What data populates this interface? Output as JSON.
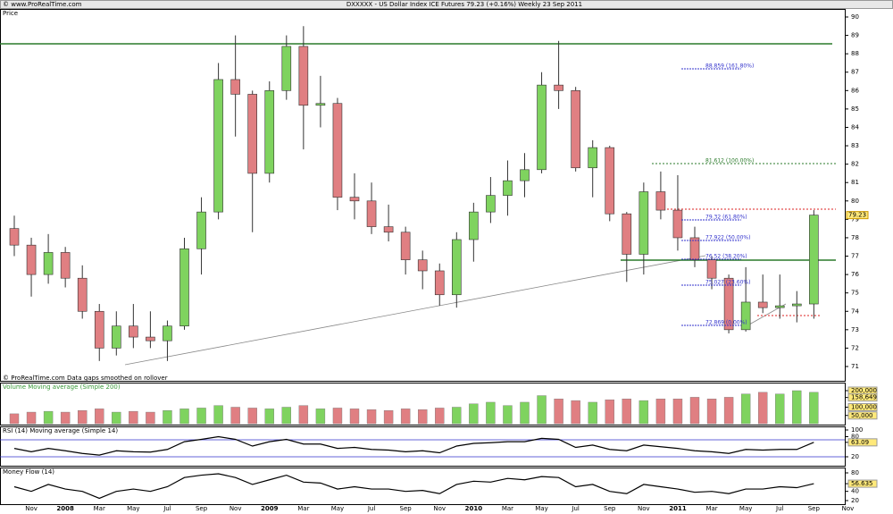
{
  "site": "© www.ProRealTime.com",
  "footnote": "© ProRealTime.com  Data gaps smoothed on rollover",
  "chart_data": {
    "type": "candlestick",
    "title": "DXXXXX - US Dollar Index ICE Futures   79.23 (+0.16%)   Weekly  23 Sep 2011",
    "y_label": "Price",
    "up_color": "#7fd35f",
    "down_color": "#e07f82",
    "categories": [
      null,
      "Nov",
      null,
      "2008",
      null,
      "Mar",
      null,
      "May",
      null,
      "Jul",
      null,
      "Sep",
      null,
      "Nov",
      null,
      "2009",
      null,
      "Mar",
      null,
      "May",
      null,
      "Jul",
      null,
      "Sep",
      null,
      "Nov",
      null,
      "2010",
      null,
      "Mar",
      null,
      "May",
      null,
      "Jul",
      null,
      "Sep",
      null,
      "Nov",
      null,
      "2011",
      null,
      "Mar",
      null,
      "May",
      null,
      "Jul",
      null,
      "Sep",
      null,
      "Nov"
    ],
    "open": [
      78.5,
      77.6,
      76.0,
      77.2,
      75.8,
      74.0,
      72.0,
      73.2,
      72.6,
      72.4,
      73.2,
      77.4,
      79.4,
      86.6,
      85.8,
      81.5,
      86.0,
      88.4,
      85.2,
      85.3,
      80.2,
      80.0,
      78.6,
      78.3,
      76.8,
      76.2,
      74.9,
      77.9,
      79.4,
      80.3,
      81.1,
      81.7,
      86.3,
      86.0,
      81.8,
      82.9,
      79.3,
      77.1,
      80.5,
      79.5,
      78.0,
      76.8,
      75.8,
      73.0,
      74.5,
      74.2,
      74.3,
      74.4,
      null,
      null
    ],
    "high": [
      79.2,
      78.0,
      78.2,
      77.5,
      76.5,
      74.4,
      74.0,
      74.4,
      74.0,
      73.5,
      78.0,
      80.2,
      87.5,
      89.0,
      86.0,
      86.5,
      89.0,
      89.5,
      86.8,
      85.6,
      81.5,
      81.0,
      79.8,
      78.6,
      77.3,
      76.6,
      78.3,
      79.9,
      81.3,
      82.2,
      82.6,
      87.0,
      88.7,
      86.2,
      83.3,
      83.0,
      79.4,
      81.0,
      81.6,
      81.4,
      78.6,
      77.0,
      76.0,
      76.4,
      76.0,
      76.0,
      75.1,
      79.5,
      null,
      null
    ],
    "low": [
      77.0,
      74.8,
      75.5,
      75.3,
      73.6,
      71.3,
      71.6,
      72.0,
      72.0,
      71.3,
      73.0,
      76.0,
      79.0,
      83.5,
      78.3,
      81.0,
      85.5,
      82.8,
      84.0,
      79.5,
      79.0,
      78.2,
      77.8,
      76.0,
      75.2,
      74.3,
      74.2,
      76.7,
      78.8,
      79.2,
      80.2,
      81.5,
      85.0,
      81.6,
      80.2,
      78.9,
      75.6,
      76.0,
      79.0,
      77.3,
      76.4,
      75.2,
      72.8,
      72.9,
      73.9,
      73.6,
      73.4,
      73.6,
      null,
      null
    ],
    "close": [
      77.6,
      76.0,
      77.2,
      75.8,
      74.0,
      72.0,
      73.2,
      72.6,
      72.4,
      73.2,
      77.4,
      79.4,
      86.6,
      85.8,
      81.5,
      86.0,
      88.4,
      85.2,
      85.3,
      80.2,
      80.0,
      78.6,
      78.3,
      76.8,
      76.2,
      74.9,
      77.9,
      79.4,
      80.3,
      81.1,
      81.7,
      86.3,
      86.0,
      81.8,
      82.9,
      79.3,
      77.1,
      80.5,
      79.5,
      78.0,
      76.8,
      75.8,
      73.0,
      74.5,
      74.2,
      74.3,
      74.4,
      79.23,
      null,
      null
    ],
    "last_price": 79.23,
    "ylim": [
      71,
      90
    ],
    "yticks": [
      71,
      72,
      73,
      74,
      75,
      76,
      77,
      78,
      79,
      80,
      81,
      82,
      83,
      84,
      85,
      86,
      87,
      88,
      89,
      90
    ],
    "annotations": [
      "88.859 (161.80%)",
      "81.612 (100.00%)",
      "79.32 (61.80%)",
      "77.922 (50.00%)",
      "76.52 (38.20%)",
      "75.027 (23.60%)",
      "72.869 (0.00%)"
    ],
    "volume": {
      "title": "Volume Moving average (Simple 200)",
      "values": [
        60000,
        70000,
        75000,
        70000,
        80000,
        90000,
        70000,
        75000,
        70000,
        80000,
        90000,
        95000,
        110000,
        100000,
        95000,
        90000,
        100000,
        110000,
        90000,
        95000,
        90000,
        85000,
        80000,
        90000,
        85000,
        95000,
        100000,
        120000,
        130000,
        110000,
        130000,
        170000,
        150000,
        140000,
        130000,
        145000,
        150000,
        140000,
        150000,
        150000,
        160000,
        150000,
        160000,
        180000,
        190000,
        180000,
        200000,
        190000,
        null,
        null
      ],
      "ylim": [
        0,
        200000
      ],
      "yticks": [
        {
          "value": 200000,
          "label": "200,000"
        },
        {
          "value": 158649,
          "label": "158,649"
        },
        {
          "value": 100000,
          "label": "100,000"
        },
        {
          "value": 50000,
          "label": "50,000"
        }
      ]
    },
    "rsi": {
      "title": "RSI (14) Moving average (Simple 14)",
      "values": [
        45,
        35,
        45,
        38,
        30,
        25,
        38,
        35,
        34,
        42,
        65,
        72,
        80,
        72,
        52,
        65,
        72,
        58,
        58,
        45,
        48,
        42,
        40,
        35,
        38,
        32,
        52,
        60,
        62,
        65,
        65,
        75,
        72,
        48,
        55,
        42,
        38,
        55,
        50,
        45,
        38,
        35,
        30,
        42,
        40,
        42,
        42,
        63.09,
        null,
        null
      ],
      "ylim": [
        0,
        100
      ],
      "yticks": [
        100,
        80,
        {
          "value": 63.09,
          "label": "63.09"
        },
        20
      ]
    },
    "money_flow": {
      "title": "Money Flow (14)",
      "values": [
        50,
        40,
        55,
        45,
        40,
        25,
        40,
        45,
        40,
        50,
        70,
        75,
        78,
        70,
        55,
        65,
        75,
        60,
        58,
        45,
        50,
        45,
        45,
        40,
        42,
        35,
        55,
        62,
        60,
        68,
        65,
        72,
        70,
        50,
        55,
        40,
        35,
        55,
        50,
        45,
        38,
        40,
        35,
        45,
        45,
        50,
        48,
        56.635,
        null,
        null
      ],
      "ylim": [
        20,
        80
      ],
      "yticks": [
        80,
        {
          "value": 56.635,
          "label": "56.635"
        },
        40,
        20
      ]
    }
  }
}
